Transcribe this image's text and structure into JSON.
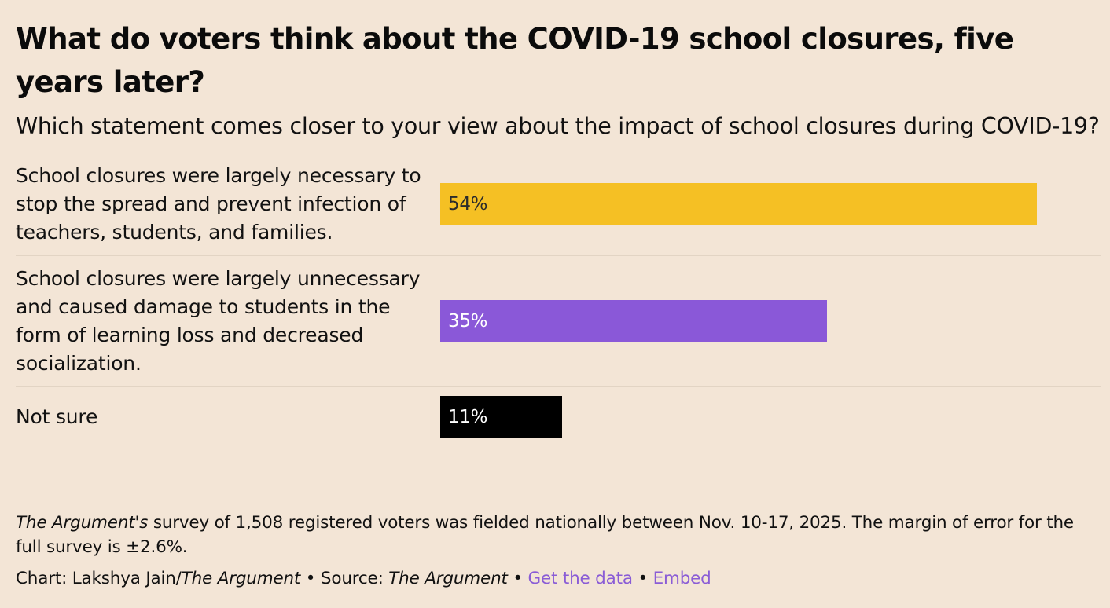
{
  "header": {
    "title": "What do voters think about the COVID-19 school closures, five years later?",
    "subtitle": "Which statement comes closer to your view about the impact of school closures during COVID-19?"
  },
  "chart_data": {
    "type": "bar",
    "orientation": "horizontal",
    "title": "What do voters think about the COVID-19 school closures, five years later?",
    "subtitle": "Which statement comes closer to your view about the impact of school closures during COVID-19?",
    "xlim": [
      0,
      100
    ],
    "unit": "%",
    "categories": [
      "School closures were largely necessary to stop the spread and prevent infection of teachers, students, and families.",
      "School closures were largely unnecessary and caused damage to students in the form of learning loss and decreased socialization.",
      "Not sure"
    ],
    "values": [
      54,
      35,
      11
    ],
    "value_labels": [
      "54%",
      "35%",
      "11%"
    ],
    "colors": [
      "#f5c024",
      "#8a58d8",
      "#000000"
    ],
    "label_colors": [
      "#2b2b2b",
      "#ffffff",
      "#ffffff"
    ]
  },
  "footer": {
    "note_pub": "The Argument's",
    "note_text": " survey of 1,508 registered voters was fielded nationally between Nov. 10-17, 2025. The margin of error for the full survey is ±2.6%.",
    "chart_prefix": "Chart: Lakshya Jain/",
    "chart_pub": "The Argument",
    "sep1": " • Source: ",
    "source_pub": "The Argument",
    "sep2": " • ",
    "get_data": "Get the data",
    "sep3": " • ",
    "embed": "Embed"
  },
  "colors": {
    "background": "#f3e5d6",
    "link": "#8a5cd6"
  }
}
